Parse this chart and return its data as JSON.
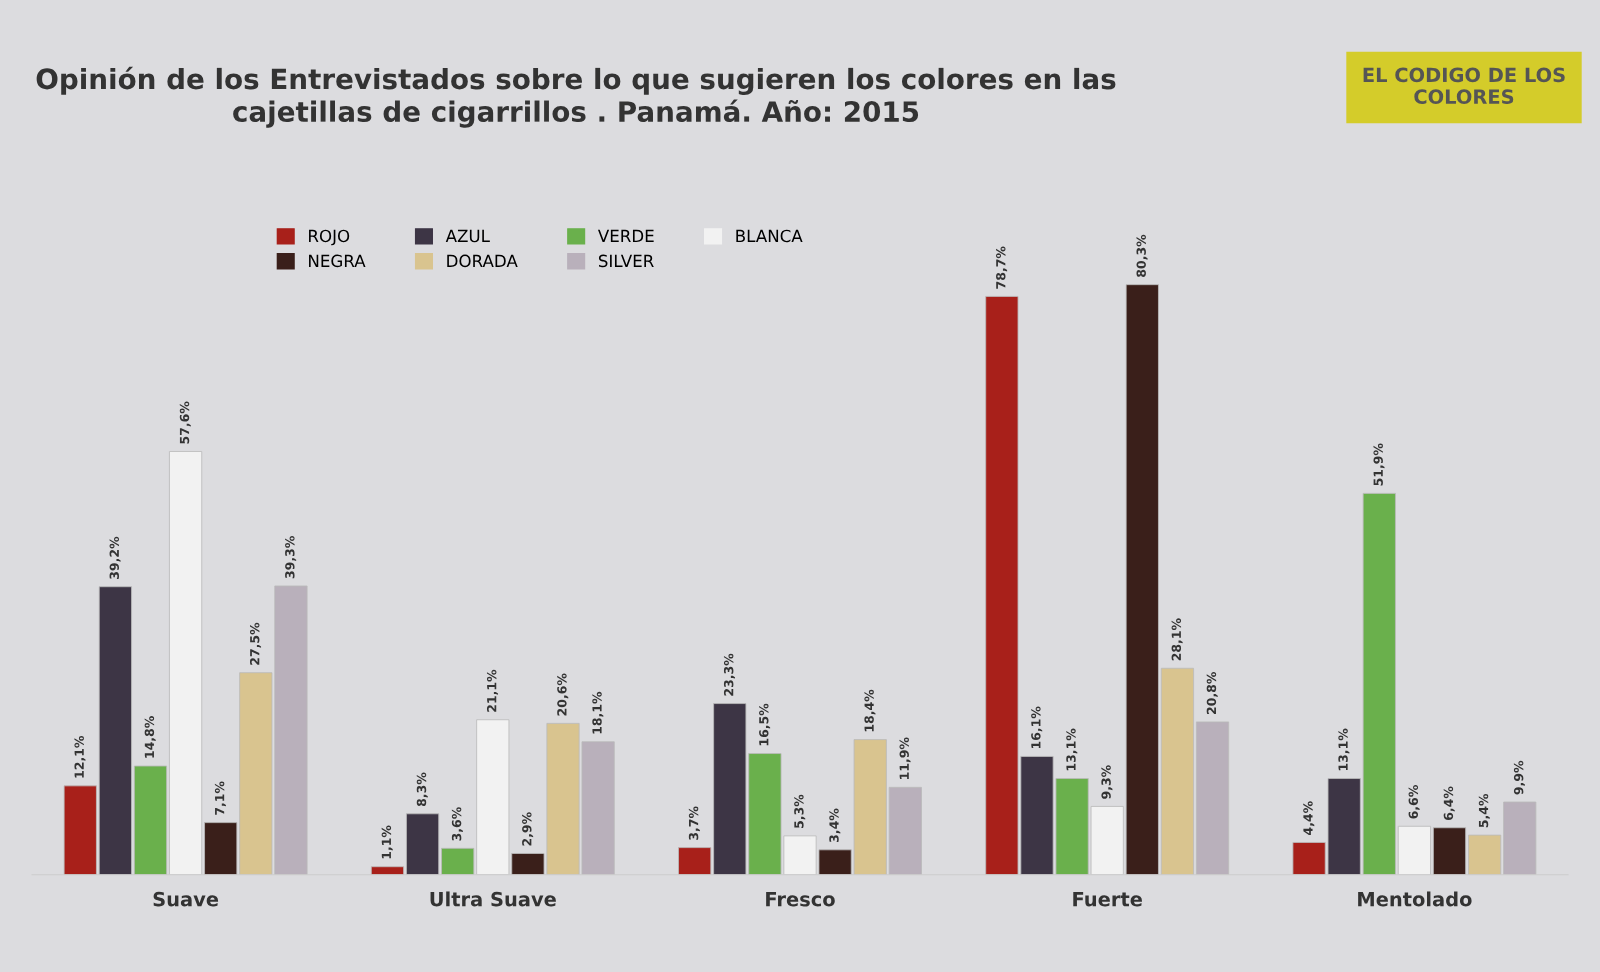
{
  "chart_data": {
    "type": "bar",
    "title": "Opinión de los Entrevistados sobre lo que sugieren los colores en las\ncajetillas de cigarrillos . Panamá. Año: 2015",
    "annotations": [
      "EL CODIGO DE LOS\nCOLORES"
    ],
    "categories": [
      "Suave",
      "Ultra Suave",
      "Fresco",
      "Fuerte",
      "Mentolado"
    ],
    "legend": "top left",
    "tick_labels": "x",
    "series": [
      {
        "name": "ROJO",
        "color": "#a8201a",
        "values": [
          12.1,
          1.1,
          3.7,
          78.7,
          4.4
        ],
        "value_labels": [
          "12,1%",
          "1,1%",
          "3,7%",
          "78,7%",
          "4,4%"
        ]
      },
      {
        "name": "AZUL",
        "color": "#3d3545",
        "values": [
          39.2,
          8.3,
          23.3,
          16.1,
          13.1
        ],
        "value_labels": [
          "39,2%",
          "8,3%",
          "23,3%",
          "16,1%",
          "13,1%"
        ]
      },
      {
        "name": "VERDE",
        "color": "#6ab04c",
        "values": [
          14.8,
          3.6,
          16.5,
          13.1,
          51.9
        ],
        "value_labels": [
          "14,8%",
          "3,6%",
          "16,5%",
          "13,1%",
          "51,9%"
        ]
      },
      {
        "name": "BLANCA",
        "color": "#f2f2f2",
        "values": [
          57.6,
          21.1,
          5.3,
          9.3,
          6.6
        ],
        "value_labels": [
          "57,6%",
          "21,1%",
          "5,3%",
          "9,3%",
          "6,6%"
        ]
      },
      {
        "name": "NEGRA",
        "color": "#3a1f1a",
        "values": [
          7.1,
          2.9,
          3.4,
          80.3,
          6.4
        ],
        "value_labels": [
          "7,1%",
          "2,9%",
          "3,4%",
          "80,3%",
          "6,4%"
        ]
      },
      {
        "name": "DORADA",
        "color": "#d9c48f",
        "values": [
          27.5,
          20.6,
          18.4,
          28.1,
          5.4
        ],
        "value_labels": [
          "27,5%",
          "20,6%",
          "18,4%",
          "28,1%",
          "5,4%"
        ]
      },
      {
        "name": "SILVER",
        "color": "#b9b0bb",
        "values": [
          39.3,
          18.1,
          11.9,
          20.8,
          9.9
        ],
        "value_labels": [
          "39,3%",
          "18,1%",
          "11,9%",
          "20,8%",
          "9,9%"
        ]
      }
    ]
  }
}
